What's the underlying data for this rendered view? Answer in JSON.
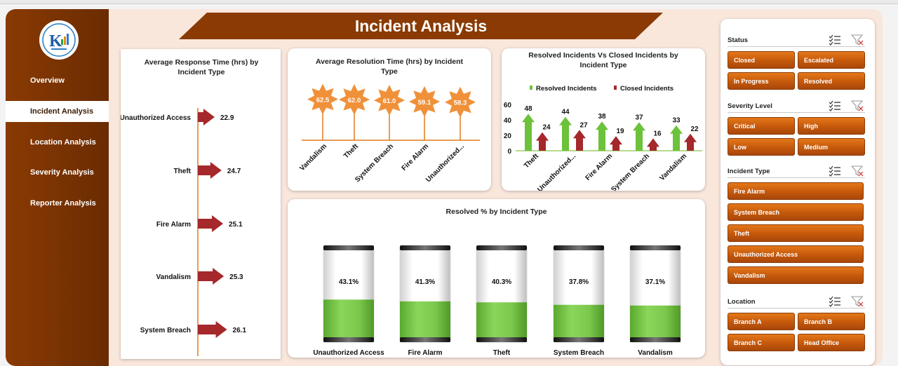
{
  "page_title": "Incident Analysis",
  "sidebar": {
    "items": [
      {
        "label": "Overview",
        "active": false
      },
      {
        "label": "Incident Analysis",
        "active": true
      },
      {
        "label": "Location Analysis",
        "active": false
      },
      {
        "label": "Severity Analysis",
        "active": false
      },
      {
        "label": "Reporter Analysis",
        "active": false
      }
    ]
  },
  "colors": {
    "brown": "#8a3a02",
    "orange": "#f0913a",
    "green": "#6cc23a",
    "red": "#a5282b",
    "panel": "#f9e7dc"
  },
  "chart_data": [
    {
      "type": "bar",
      "title": "Average Response Time (hrs) by Incident Type",
      "categories": [
        "Unauthorized Access",
        "Theft",
        "Fire Alarm",
        "Vandalism",
        "System Breach"
      ],
      "values": [
        22.9,
        24.7,
        25.1,
        25.3,
        26.1
      ],
      "orientation": "horizontal",
      "marker": "arrow",
      "color": "#a5282b"
    },
    {
      "type": "bar",
      "title": "Average Resolution Time (hrs) by Incident Type",
      "categories": [
        "Vandalism",
        "Theft",
        "System Breach",
        "Fire Alarm",
        "Unauthorized..."
      ],
      "values": [
        62.5,
        62.0,
        61.0,
        59.1,
        58.3
      ],
      "marker": "star",
      "color": "#f0913a"
    },
    {
      "type": "bar",
      "title": "Resolved Incidents Vs Closed Incidents by Incident Type",
      "categories": [
        "Theft",
        "Unauthorized...",
        "Fire Alarm",
        "System Breach",
        "Vandalism"
      ],
      "series": [
        {
          "name": "Resolved Incidents",
          "values": [
            48,
            44,
            38,
            37,
            33
          ],
          "color": "#6cc23a"
        },
        {
          "name": "Closed Incidents",
          "values": [
            24,
            27,
            19,
            16,
            22
          ],
          "color": "#a5282b"
        }
      ],
      "ylim": [
        0,
        60
      ],
      "yticks": [
        "0",
        "20",
        "40",
        "60"
      ],
      "legend": "top",
      "marker": "arrow"
    },
    {
      "type": "bar",
      "title": "Resolved % by Incident Type",
      "categories": [
        "Unauthorized Access",
        "Fire Alarm",
        "Theft",
        "System Breach",
        "Vandalism"
      ],
      "values": [
        43.1,
        41.3,
        40.3,
        37.8,
        37.1
      ],
      "labels": [
        "43.1%",
        "41.3%",
        "40.3%",
        "37.8%",
        "37.1%"
      ],
      "marker": "cylinder",
      "color": "#6cc23a"
    }
  ],
  "slicers": [
    {
      "title": "Status",
      "items": [
        "Closed",
        "Escalated",
        "In Progress",
        "Resolved"
      ],
      "columns": 2
    },
    {
      "title": "Severity Level",
      "items": [
        "Critical",
        "High",
        "Low",
        "Medium"
      ],
      "columns": 2
    },
    {
      "title": "Incident Type",
      "items": [
        "Fire Alarm",
        "System Breach",
        "Theft",
        "Unauthorized Access",
        "Vandalism"
      ],
      "columns": 1
    },
    {
      "title": "Location",
      "items": [
        "Branch A",
        "Branch B",
        "Branch C",
        "Head Office"
      ],
      "columns": 2
    }
  ],
  "icons": [
    "logo-icon",
    "multi-select-icon",
    "clear-filter-icon"
  ]
}
